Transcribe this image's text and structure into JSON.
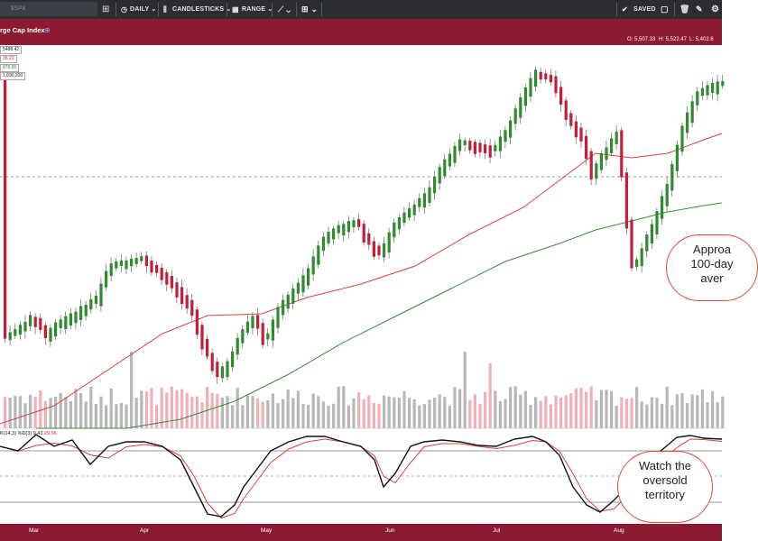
{
  "toolbar": {
    "search_placeholder": "$SPX",
    "period_label": "DAILY",
    "type_label": "CANDLESTICKS",
    "range_label": "RANGE",
    "saved_label": "SAVED"
  },
  "header": {
    "title": "rge Cap Index",
    "ohlc_open": "O: 5,507.33",
    "ohlc_high": "H: 5,522.47",
    "ohlc_low": "L: 5,402.6"
  },
  "price_tags": {
    "tag1": "5488.42",
    "tag2": "35.22",
    "tag3": "878.85",
    "tag4": "1,690,200"
  },
  "stoch": {
    "label": "K(14,3) %D(3) 9.43",
    "value": "29.06"
  },
  "callouts": {
    "ma_note": "Approa\n100-day\naver",
    "oversold_note": "Watch the\noversold\nterritory"
  },
  "chart_data": {
    "type": "candlestick",
    "x_labels": [
      "Mar",
      "Apr",
      "May",
      "Jun",
      "Jul",
      "Aug"
    ],
    "colors": {
      "up": "#2e8b2e",
      "down": "#c41e3a",
      "ma50": "#d94040",
      "ma100": "#3a8a3a"
    },
    "candles": [
      [
        0,
        0
      ],
      [
        1,
        1
      ],
      [
        -1,
        -1
      ],
      [
        1,
        0
      ],
      [
        1,
        1
      ],
      [
        -1,
        1
      ],
      [
        -1,
        -1
      ],
      [
        1,
        -1
      ],
      [
        1,
        0
      ],
      [
        1,
        1
      ],
      [
        -1,
        1
      ],
      [
        1,
        0
      ],
      [
        -1,
        -1
      ],
      [
        1,
        0
      ],
      [
        1,
        1
      ],
      [
        -1,
        1
      ],
      [
        1,
        0
      ],
      [
        1,
        1
      ],
      [
        -1,
        1
      ],
      [
        1,
        1
      ],
      [
        -1,
        -1
      ],
      [
        -1,
        -1
      ],
      [
        -1,
        -1
      ],
      [
        1,
        0
      ],
      [
        -1,
        -1
      ],
      [
        1,
        0
      ],
      [
        1,
        1
      ],
      [
        -1,
        -1
      ],
      [
        1,
        1
      ],
      [
        1,
        1
      ],
      [
        1,
        1
      ],
      [
        1,
        1
      ],
      [
        1,
        1
      ],
      [
        1,
        1
      ],
      [
        -1,
        1
      ],
      [
        1,
        1
      ],
      [
        1,
        1
      ],
      [
        -1,
        1
      ],
      [
        -1,
        1
      ],
      [
        1,
        1
      ]
    ],
    "volume_peaks": [
      {
        "month_fraction": 0.18,
        "value": 1.0
      },
      {
        "month_fraction": 0.64,
        "value": 1.0
      },
      {
        "month_fraction": 0.68,
        "value": 0.85
      }
    ],
    "stochastic": {
      "overbought": 80,
      "oversold": 20
    }
  }
}
